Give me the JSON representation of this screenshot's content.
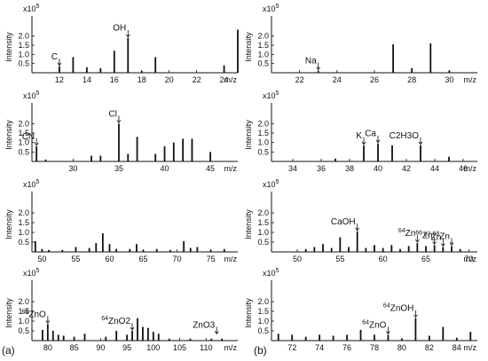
{
  "figure": {
    "label_a": "(a)",
    "label_b": "(b)"
  },
  "chart_data": [
    {
      "type": "bar",
      "column": "a",
      "row": 0,
      "ylabel": "Intensity",
      "yexp": "x10",
      "yexp_power": "5",
      "xunit": "m/z",
      "xlim": [
        10,
        25
      ],
      "ylim": [
        0,
        3
      ],
      "yticks": [
        "0.5",
        "1.0",
        "1.5",
        "2.0"
      ],
      "ytick_values": [
        0.5,
        1.0,
        1.5,
        2.0
      ],
      "xticks": [
        "12",
        "14",
        "16",
        "18",
        "20",
        "22",
        "24"
      ],
      "xtick_values": [
        12,
        14,
        16,
        18,
        20,
        22,
        24
      ],
      "x": [
        12,
        13,
        14,
        15,
        16,
        17,
        18,
        19,
        24,
        25
      ],
      "values": [
        0.35,
        0.85,
        0.3,
        0.25,
        1.2,
        1.9,
        0.1,
        0.85,
        0.4,
        2.35
      ],
      "annotations": [
        {
          "text": "C",
          "x": 12
        },
        {
          "text": "OH",
          "x": 17
        }
      ]
    },
    {
      "type": "bar",
      "column": "b",
      "row": 0,
      "ylabel": "Intensity",
      "yexp": "x10",
      "yexp_power": "5",
      "xunit": "m/z",
      "xlim": [
        20.5,
        31.5
      ],
      "ylim": [
        0,
        3
      ],
      "yticks": [
        "0.5",
        "1.0",
        "1.5",
        "2.0"
      ],
      "ytick_values": [
        0.5,
        1.0,
        1.5,
        2.0
      ],
      "xticks": [
        "22",
        "24",
        "26",
        "28",
        "30"
      ],
      "xtick_values": [
        22,
        24,
        26,
        28,
        30
      ],
      "x": [
        23,
        27,
        28,
        29,
        30
      ],
      "values": [
        0.12,
        1.55,
        0.25,
        1.6,
        0.12
      ],
      "annotations": [
        {
          "text": "Na",
          "x": 23
        }
      ]
    },
    {
      "type": "bar",
      "column": "a",
      "row": 1,
      "ylabel": "Intensity",
      "yexp": "x10",
      "yexp_power": "5",
      "xunit": "m/z",
      "xlim": [
        25.5,
        48
      ],
      "ylim": [
        0,
        3
      ],
      "yticks": [
        "0.5",
        "1.0",
        "1.5",
        "2.0"
      ],
      "ytick_values": [
        0.5,
        1.0,
        1.5,
        2.0
      ],
      "xticks": [
        "30",
        "35",
        "40",
        "45"
      ],
      "xtick_values": [
        30,
        35,
        40,
        45
      ],
      "x": [
        26,
        27,
        32,
        33,
        35,
        36,
        37,
        39,
        40,
        41,
        42,
        43,
        45
      ],
      "values": [
        0.8,
        0.1,
        0.3,
        0.3,
        2.0,
        0.4,
        1.3,
        0.4,
        0.8,
        1.0,
        1.2,
        1.2,
        0.5
      ],
      "annotations": [
        {
          "text": "CN",
          "x": 26
        },
        {
          "text": "Cl",
          "x": 35
        }
      ]
    },
    {
      "type": "bar",
      "column": "b",
      "row": 1,
      "ylabel": "Intensity",
      "yexp": "x10",
      "yexp_power": "5",
      "xunit": "m/z",
      "xlim": [
        32.5,
        47
      ],
      "ylim": [
        0,
        3
      ],
      "yticks": [
        "0.5",
        "1.0",
        "1.5",
        "2.0"
      ],
      "ytick_values": [
        0.5,
        1.0,
        1.5,
        2.0
      ],
      "xticks": [
        "34",
        "36",
        "38",
        "40",
        "42",
        "44",
        "46"
      ],
      "xtick_values": [
        34,
        36,
        38,
        40,
        42,
        44,
        46
      ],
      "x": [
        37,
        39,
        40,
        41,
        43,
        45
      ],
      "values": [
        0.15,
        0.85,
        0.95,
        0.85,
        0.85,
        0.25
      ],
      "annotations": [
        {
          "text": "K",
          "x": 39
        },
        {
          "text": "Ca",
          "x": 40
        },
        {
          "text": "C2H3O",
          "x": 43
        }
      ]
    },
    {
      "type": "bar",
      "column": "a",
      "row": 2,
      "ylabel": "Intensity",
      "yexp": "x10",
      "yexp_power": "5",
      "xunit": "m/z",
      "xlim": [
        48.5,
        79
      ],
      "ylim": [
        0,
        3
      ],
      "yticks": [
        "0.5",
        "1.0",
        "1.5",
        "2.0"
      ],
      "ytick_values": [
        0.5,
        1.0,
        1.5,
        2.0
      ],
      "xticks": [
        "50",
        "55",
        "60",
        "65",
        "70",
        "75"
      ],
      "xtick_values": [
        50,
        55,
        60,
        65,
        70,
        75
      ],
      "x": [
        49,
        50,
        51,
        53,
        55,
        57,
        58,
        59,
        60,
        61,
        63,
        64,
        65,
        67,
        69,
        71,
        72,
        73,
        75,
        77
      ],
      "values": [
        0.55,
        0.15,
        0.1,
        0.1,
        0.25,
        0.2,
        0.45,
        0.95,
        0.4,
        0.15,
        0.15,
        0.4,
        0.1,
        0.15,
        0.1,
        0.55,
        0.2,
        0.25,
        0.1,
        0.15
      ],
      "annotations": []
    },
    {
      "type": "bar",
      "column": "b",
      "row": 2,
      "ylabel": "Intensity",
      "yexp": "x10",
      "yexp_power": "5",
      "xunit": "m/z",
      "xlim": [
        47,
        71
      ],
      "ylim": [
        0,
        3
      ],
      "yticks": [
        "0.5",
        "1.0",
        "1.5",
        "2.0"
      ],
      "ytick_values": [
        0.5,
        1.0,
        1.5,
        2.0
      ],
      "xticks": [
        "50",
        "55",
        "60",
        "65",
        "70"
      ],
      "xtick_values": [
        50,
        55,
        60,
        65,
        70
      ],
      "x": [
        51,
        52,
        53,
        54,
        55,
        56,
        57,
        58,
        59,
        60,
        61,
        62,
        63,
        64,
        65,
        66,
        67,
        68,
        69
      ],
      "values": [
        0.15,
        0.25,
        0.4,
        0.2,
        0.75,
        0.25,
        1.05,
        0.2,
        0.35,
        0.2,
        0.35,
        0.15,
        0.3,
        0.45,
        0.3,
        0.35,
        0.25,
        0.3,
        0.15
      ],
      "annotations": [
        {
          "text": "CaOH",
          "x": 57
        },
        {
          "text": "Zn",
          "sup": "64",
          "x": 64
        },
        {
          "text": "Zn",
          "sup": "66",
          "x": 66
        },
        {
          "text": "Zn",
          "sup": "67",
          "x": 67
        },
        {
          "text": "Zn",
          "sup": "68",
          "x": 68
        }
      ]
    },
    {
      "type": "bar",
      "column": "a",
      "row": 3,
      "ylabel": "Intensity",
      "yexp": "x10",
      "yexp_power": "5",
      "xunit": "m/z",
      "xlim": [
        77,
        116
      ],
      "ylim": [
        0,
        3
      ],
      "yticks": [
        "0.5",
        "1.0",
        "1.5",
        "2.0"
      ],
      "ytick_values": [
        0.5,
        1.0,
        1.5,
        2.0
      ],
      "xticks": [
        "80",
        "85",
        "90",
        "95",
        "100",
        "105",
        "110"
      ],
      "xtick_values": [
        80,
        85,
        90,
        95,
        100,
        105,
        110
      ],
      "x": [
        79,
        80,
        81,
        82,
        83,
        85,
        87,
        91,
        93,
        95,
        96,
        97,
        98,
        99,
        100,
        101,
        103,
        107,
        111,
        113
      ],
      "values": [
        0.55,
        0.85,
        0.5,
        0.3,
        0.25,
        0.2,
        0.35,
        0.2,
        0.5,
        0.3,
        0.5,
        1.15,
        0.7,
        0.65,
        0.45,
        0.35,
        0.1,
        0.1,
        0.1,
        0.1
      ],
      "annotations": [
        {
          "text": "ZnO",
          "sup": "64",
          "x": 80
        },
        {
          "text": "ZnO2",
          "sup": "64",
          "x": 96
        },
        {
          "text": "ZnO3",
          "x": 112
        }
      ]
    },
    {
      "type": "bar",
      "column": "b",
      "row": 3,
      "ylabel": "Intensity",
      "yexp": "x10",
      "yexp_power": "5",
      "xunit": "m/z",
      "xlim": [
        70.5,
        85.5
      ],
      "ylim": [
        0,
        3
      ],
      "yticks": [
        "0.5",
        "1.0",
        "1.5",
        "2.0"
      ],
      "ytick_values": [
        0.5,
        1.0,
        1.5,
        2.0
      ],
      "xticks": [
        "72",
        "74",
        "76",
        "78",
        "80",
        "82",
        "84"
      ],
      "xtick_values": [
        72,
        74,
        76,
        78,
        80,
        82,
        84
      ],
      "x": [
        71,
        72,
        73,
        74,
        75,
        76,
        77,
        78,
        79,
        80,
        81,
        82,
        83,
        84,
        85
      ],
      "values": [
        0.35,
        0.3,
        0.2,
        0.3,
        0.25,
        0.3,
        0.55,
        0.3,
        0.3,
        0.1,
        1.15,
        0.25,
        0.7,
        0.15,
        0.45
      ],
      "annotations": [
        {
          "text": "ZnO",
          "sup": "64",
          "x": 79
        },
        {
          "text": "ZnOH",
          "sup": "64",
          "x": 81
        }
      ]
    }
  ]
}
